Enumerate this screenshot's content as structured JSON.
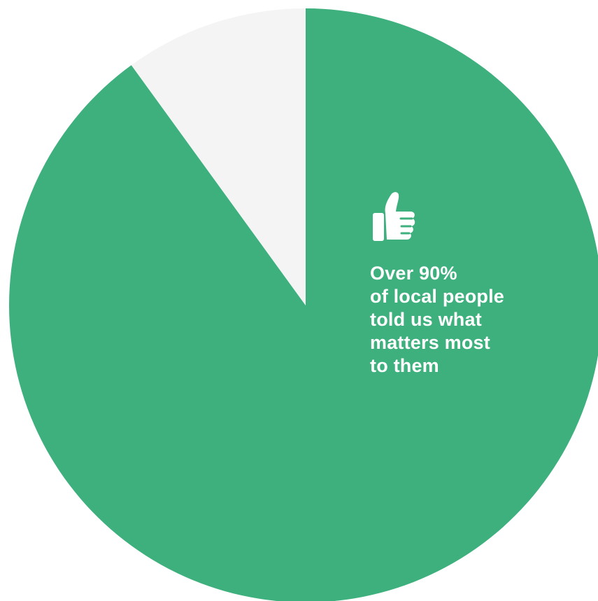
{
  "chart_data": {
    "type": "pie",
    "start_angle_deg": 0,
    "direction": "clockwise",
    "slices": [
      {
        "value": 90,
        "color": "#3db07d"
      },
      {
        "value": 10,
        "color": "#f4f4f5"
      }
    ],
    "annotation": {
      "icon": "thumbs-up-icon",
      "lines": [
        "Over 90%",
        "of local people",
        "told us what",
        "matters most",
        "to them"
      ]
    }
  },
  "colors": {
    "accent": "#3db07d",
    "background_slice": "#f4f4f5",
    "text": "#ffffff"
  }
}
